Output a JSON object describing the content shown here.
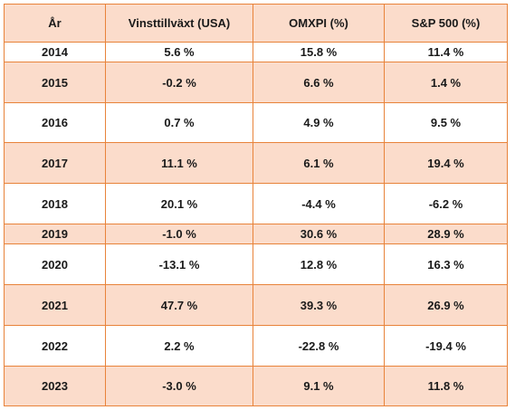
{
  "table": {
    "headers": [
      "År",
      "Vinsttillväxt (USA)",
      "OMXPI (%)",
      "S&P 500 (%)"
    ],
    "rows": [
      [
        "2014",
        "5.6 %",
        "15.8 %",
        "11.4 %"
      ],
      [
        "2015",
        "-0.2 %",
        "6.6 %",
        "1.4 %"
      ],
      [
        "2016",
        "0.7 %",
        "4.9 %",
        "9.5 %"
      ],
      [
        "2017",
        "11.1 %",
        "6.1 %",
        "19.4 %"
      ],
      [
        "2018",
        "20.1 %",
        "-4.4 %",
        "-6.2 %"
      ],
      [
        "2019",
        "-1.0 %",
        "30.6 %",
        "28.9 %"
      ],
      [
        "2020",
        "-13.1 %",
        "12.8 %",
        "16.3 %"
      ],
      [
        "2021",
        "47.7 %",
        "39.3 %",
        "26.9 %"
      ],
      [
        "2022",
        "2.2 %",
        "-22.8 %",
        "-19.4 %"
      ],
      [
        "2023",
        "-3.0 %",
        "9.1 %",
        "11.8 %"
      ]
    ]
  },
  "colors": {
    "border": "#e8833a",
    "shaded_row": "#fbdccb",
    "plain_row": "#ffffff"
  }
}
